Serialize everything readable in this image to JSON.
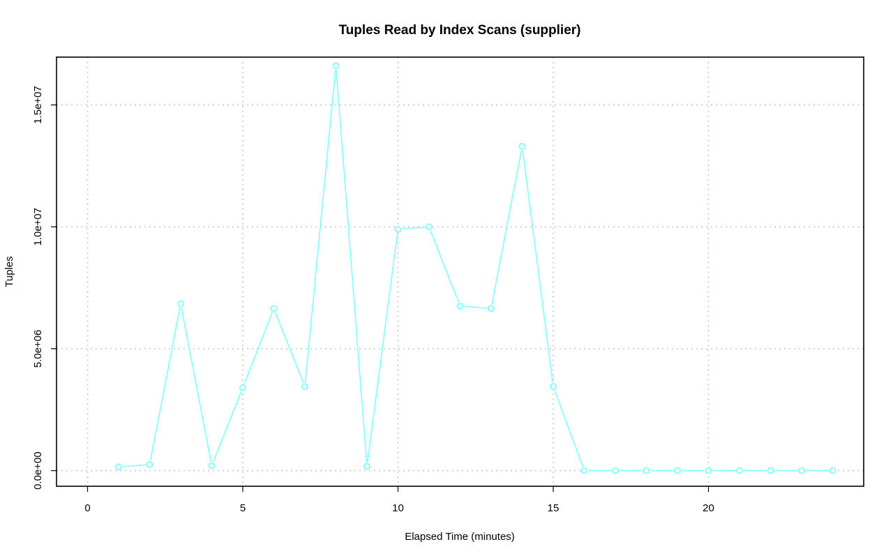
{
  "chart_data": {
    "type": "line",
    "title": "Tuples Read by Index Scans (supplier)",
    "xlabel": "Elapsed Time (minutes)",
    "ylabel": "Tuples",
    "xlim": [
      -1,
      25
    ],
    "ylim": [
      -640000,
      16960000
    ],
    "x_ticks": [
      0,
      5,
      10,
      15,
      20
    ],
    "x_tick_labels": [
      "0",
      "5",
      "10",
      "15",
      "20"
    ],
    "y_ticks": [
      0,
      5000000,
      10000000,
      15000000
    ],
    "y_tick_labels": [
      "0.0e+00",
      "5.0e+06",
      "1.0e+07",
      "1.5e+07"
    ],
    "grid": true,
    "line_color": "#7fffff",
    "series": [
      {
        "x": [
          1,
          2,
          3,
          4,
          5,
          6,
          7,
          8,
          9,
          10,
          11,
          12,
          13,
          14,
          15,
          16,
          17,
          18,
          19,
          20,
          21,
          22,
          23,
          24
        ],
        "values": [
          150000,
          250000,
          6850000,
          200000,
          3400000,
          6650000,
          3450000,
          16600000,
          180000,
          9900000,
          10000000,
          6750000,
          6650000,
          13300000,
          3450000,
          0,
          0,
          0,
          0,
          0,
          0,
          0,
          0,
          0
        ]
      }
    ]
  }
}
